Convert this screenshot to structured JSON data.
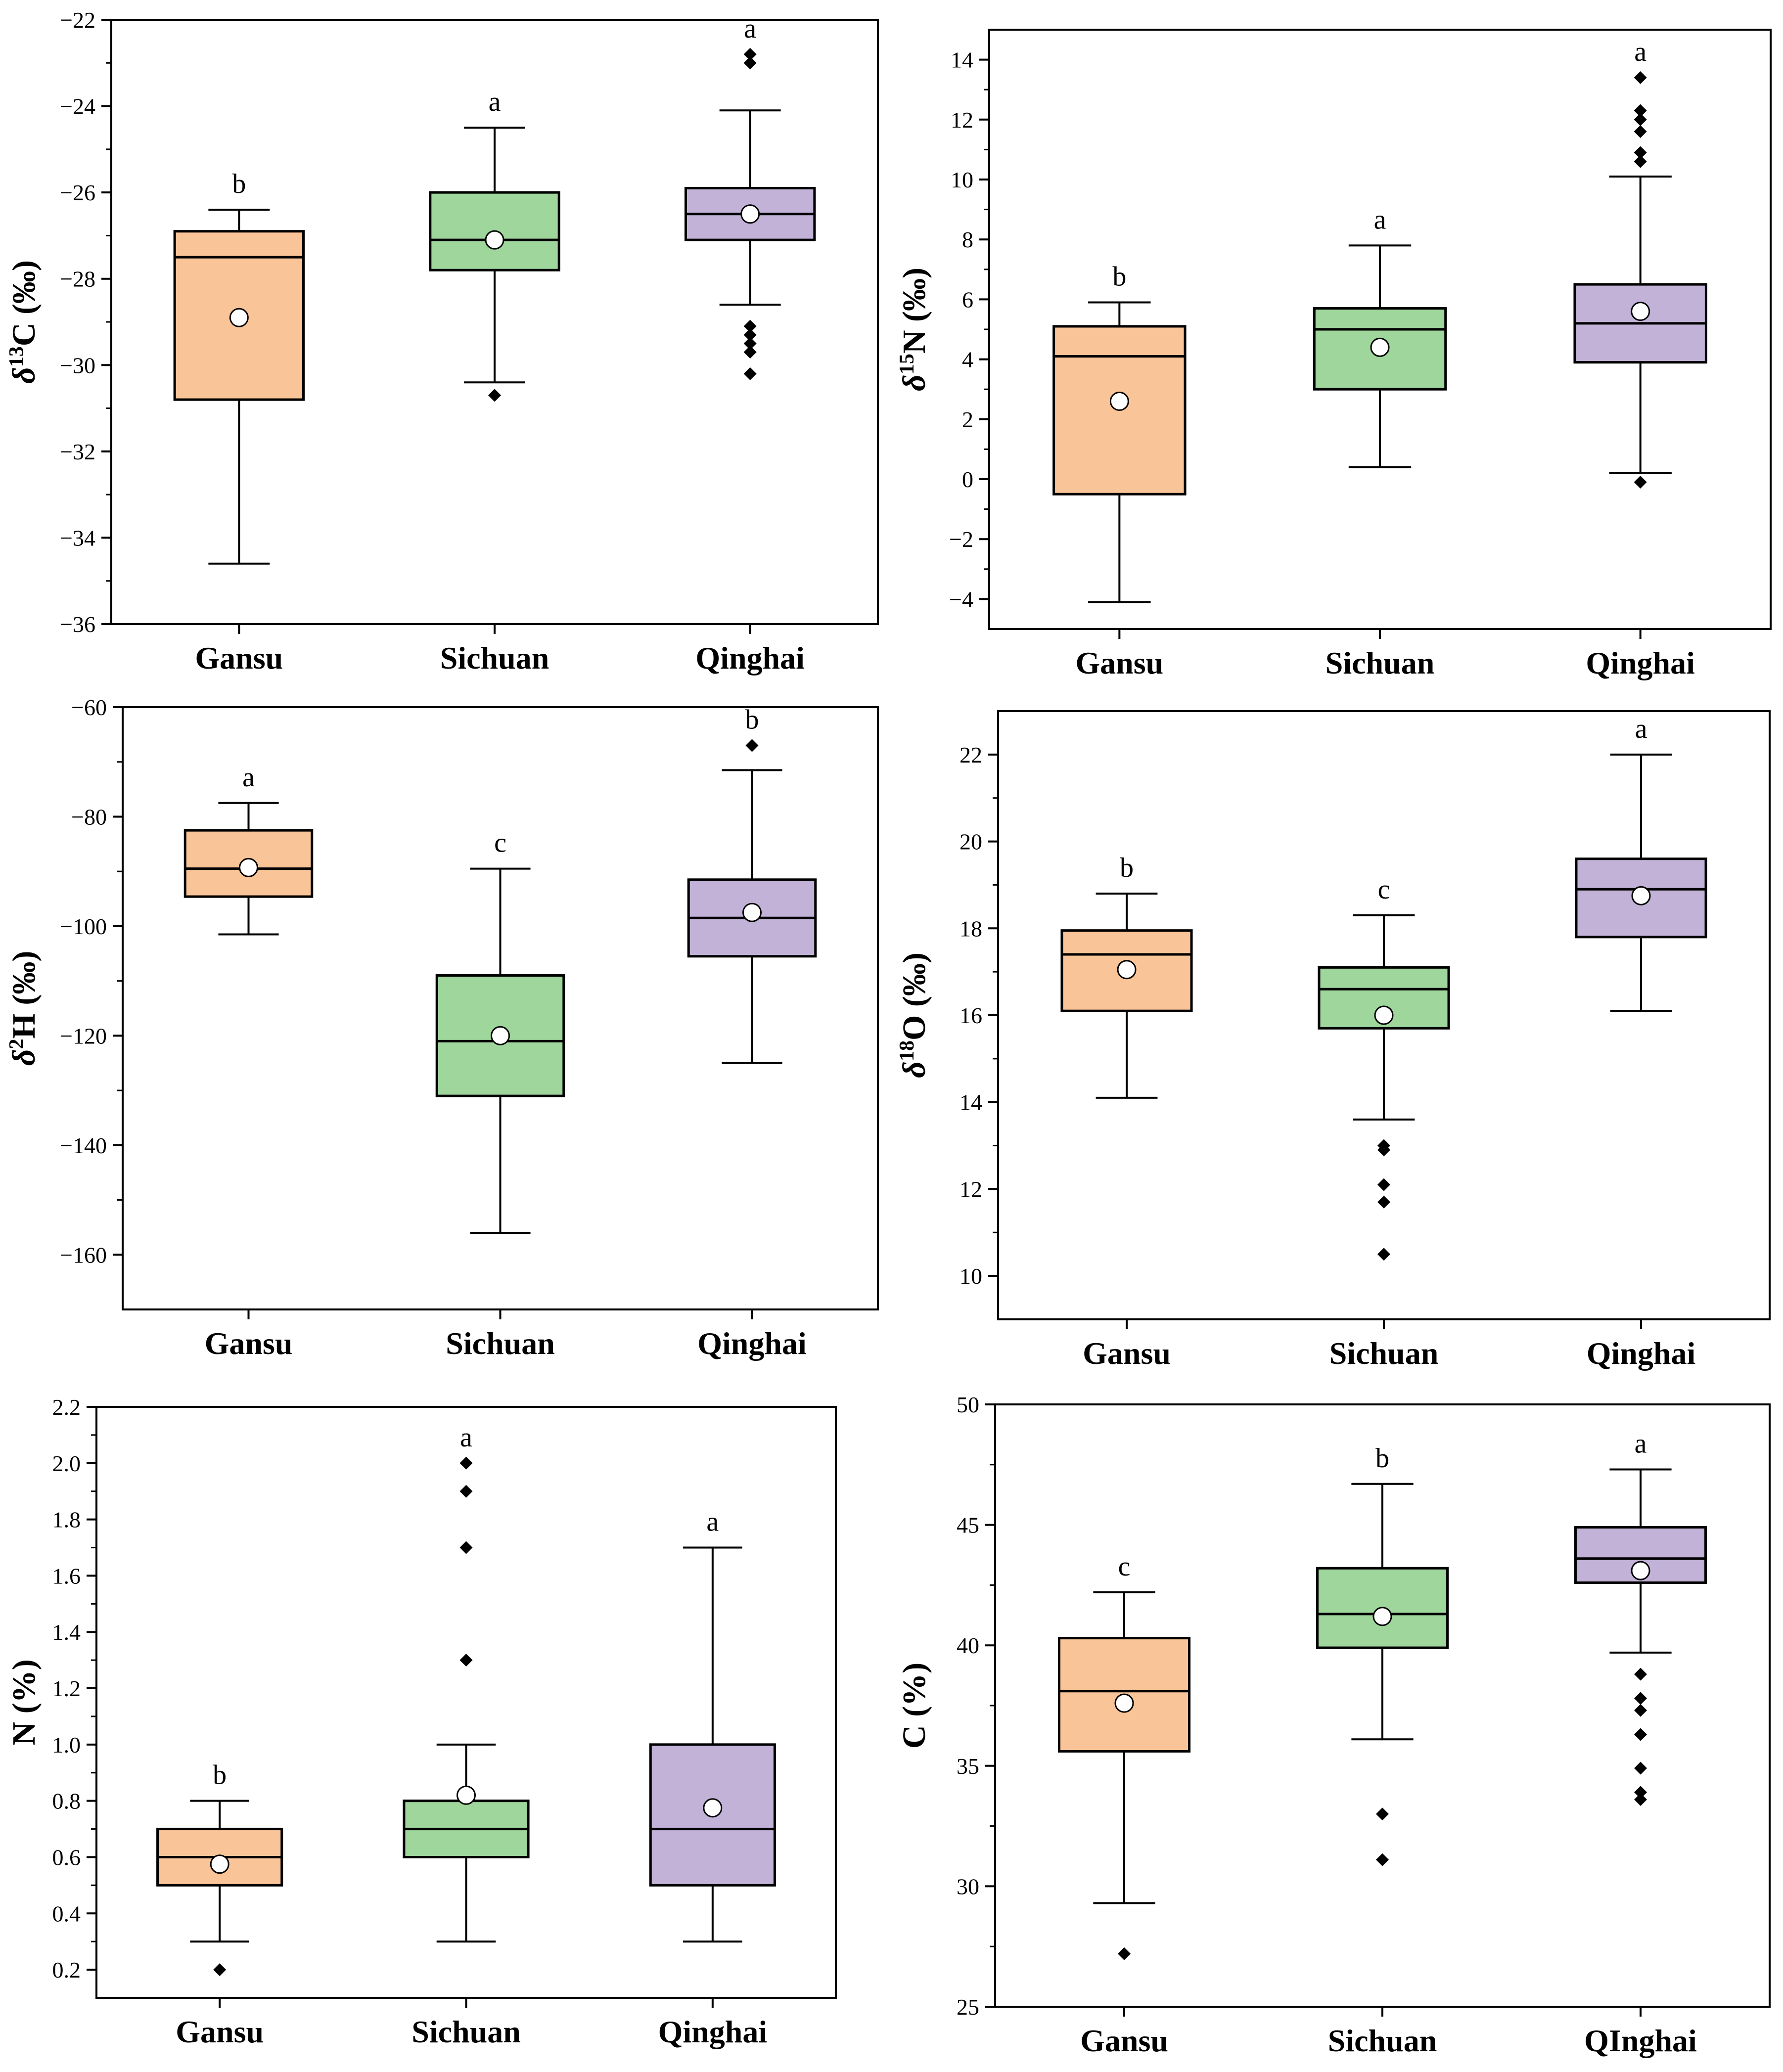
{
  "colors": {
    "Gansu": "#f9c497",
    "Sichuan": "#9ed69c",
    "Qinghai": "#c2b2d8",
    "line": "#000000",
    "mean_marker": "#ffffff"
  },
  "chart_data": [
    {
      "type": "box",
      "ylabel": "δ13C (‰)",
      "ylabel_parts": {
        "symbol": "δ",
        "sup": "13",
        "rest": "C (‰)"
      },
      "ylim": [
        -36,
        -22
      ],
      "yticks": [
        -36,
        -34,
        -32,
        -30,
        -28,
        -26,
        -24,
        -22
      ],
      "ytick_labels": [
        "−36",
        "−34",
        "−32",
        "−30",
        "−28",
        "−26",
        "−24",
        "−22"
      ],
      "categories": [
        "Gansu",
        "Sichuan",
        "Qinghai"
      ],
      "boxes": [
        {
          "group": "Gansu",
          "whisker_low": -34.6,
          "q1": -30.8,
          "median": -27.5,
          "q3": -26.9,
          "whisker_high": -26.4,
          "mean": -28.9,
          "outliers": [],
          "letter": "b"
        },
        {
          "group": "Sichuan",
          "whisker_low": -30.4,
          "q1": -27.8,
          "median": -27.1,
          "q3": -26.0,
          "whisker_high": -24.5,
          "mean": -27.1,
          "outliers": [
            -30.7
          ],
          "letter": "a"
        },
        {
          "group": "Qinghai",
          "whisker_low": -28.6,
          "q1": -27.1,
          "median": -26.5,
          "q3": -25.9,
          "whisker_high": -24.1,
          "mean": -26.5,
          "outliers": [
            -29.1,
            -29.3,
            -29.5,
            -29.7,
            -30.2,
            -22.8,
            -23.0
          ],
          "letter": "a"
        }
      ]
    },
    {
      "type": "box",
      "ylabel": "δ15N (‰)",
      "ylabel_parts": {
        "symbol": "δ",
        "sup": "15",
        "rest": "N (‰)"
      },
      "ylim": [
        -5,
        15
      ],
      "yticks": [
        -4,
        -2,
        0,
        2,
        4,
        6,
        8,
        10,
        12,
        14
      ],
      "ytick_labels": [
        "−4",
        "−2",
        "0",
        "2",
        "4",
        "6",
        "8",
        "10",
        "12",
        "14"
      ],
      "categories": [
        "Gansu",
        "Sichuan",
        "Qinghai"
      ],
      "boxes": [
        {
          "group": "Gansu",
          "whisker_low": -4.1,
          "q1": -0.5,
          "median": 4.1,
          "q3": 5.1,
          "whisker_high": 5.9,
          "mean": 2.6,
          "outliers": [],
          "letter": "b"
        },
        {
          "group": "Sichuan",
          "whisker_low": 0.4,
          "q1": 3.0,
          "median": 5.0,
          "q3": 5.7,
          "whisker_high": 7.8,
          "mean": 4.4,
          "outliers": [],
          "letter": "a"
        },
        {
          "group": "Qinghai",
          "whisker_low": 0.2,
          "q1": 3.9,
          "median": 5.2,
          "q3": 6.5,
          "whisker_high": 10.1,
          "mean": 5.6,
          "outliers": [
            -0.1,
            10.6,
            10.9,
            11.6,
            12.0,
            12.3,
            13.4
          ],
          "letter": "a"
        }
      ]
    },
    {
      "type": "box",
      "ylabel": "δ2H (‰)",
      "ylabel_parts": {
        "symbol": "δ",
        "sup": "2",
        "rest": "H (‰)"
      },
      "ylim": [
        -170,
        -60
      ],
      "yticks": [
        -160,
        -140,
        -120,
        -100,
        -80,
        -60
      ],
      "ytick_labels": [
        "−160",
        "−140",
        "−120",
        "−100",
        "−80",
        "−60"
      ],
      "categories": [
        "Gansu",
        "Sichuan",
        "Qinghai"
      ],
      "boxes": [
        {
          "group": "Gansu",
          "whisker_low": -101.5,
          "q1": -94.6,
          "median": -89.5,
          "q3": -82.5,
          "whisker_high": -77.5,
          "mean": -89.3,
          "outliers": [],
          "letter": "a"
        },
        {
          "group": "Sichuan",
          "whisker_low": -156.0,
          "q1": -131.0,
          "median": -121.0,
          "q3": -109.0,
          "whisker_high": -89.5,
          "mean": -120.0,
          "outliers": [],
          "letter": "c"
        },
        {
          "group": "Qinghai",
          "whisker_low": -125.0,
          "q1": -105.5,
          "median": -98.5,
          "q3": -91.5,
          "whisker_high": -71.5,
          "mean": -97.5,
          "outliers": [
            -67.0
          ],
          "letter": "b"
        }
      ]
    },
    {
      "type": "box",
      "ylabel": "δ18O (‰)",
      "ylabel_parts": {
        "symbol": "δ",
        "sup": "18",
        "rest": "O (‰)"
      },
      "ylim": [
        9,
        23
      ],
      "yticks": [
        10,
        12,
        14,
        16,
        18,
        20,
        22
      ],
      "ytick_labels": [
        "10",
        "12",
        "14",
        "16",
        "18",
        "20",
        "22"
      ],
      "categories": [
        "Gansu",
        "Sichuan",
        "Qinghai"
      ],
      "boxes": [
        {
          "group": "Gansu",
          "whisker_low": 14.1,
          "q1": 16.1,
          "median": 17.4,
          "q3": 17.95,
          "whisker_high": 18.8,
          "mean": 17.05,
          "outliers": [],
          "letter": "b"
        },
        {
          "group": "Sichuan",
          "whisker_low": 13.6,
          "q1": 15.7,
          "median": 16.6,
          "q3": 17.1,
          "whisker_high": 18.3,
          "mean": 16.0,
          "outliers": [
            10.5,
            11.7,
            12.1,
            12.9,
            13.0
          ],
          "letter": "c"
        },
        {
          "group": "Qinghai",
          "whisker_low": 16.1,
          "q1": 17.8,
          "median": 18.9,
          "q3": 19.6,
          "whisker_high": 22.0,
          "mean": 18.75,
          "outliers": [],
          "letter": "a"
        }
      ]
    },
    {
      "type": "box",
      "ylabel": "N (%)",
      "ylabel_parts": {
        "symbol": "",
        "sup": "",
        "rest": "N (%)"
      },
      "ylim": [
        0.1,
        2.2
      ],
      "yticks": [
        0.2,
        0.4,
        0.6,
        0.8,
        1.0,
        1.2,
        1.4,
        1.6,
        1.8,
        2.0,
        2.2
      ],
      "ytick_labels": [
        "0.2",
        "0.4",
        "0.6",
        "0.8",
        "1.0",
        "1.2",
        "1.4",
        "1.6",
        "1.8",
        "2.0",
        "2.2"
      ],
      "categories": [
        "Gansu",
        "Sichuan",
        "Qinghai"
      ],
      "boxes": [
        {
          "group": "Gansu",
          "whisker_low": 0.3,
          "q1": 0.5,
          "median": 0.6,
          "q3": 0.7,
          "whisker_high": 0.8,
          "mean": 0.575,
          "outliers": [
            0.2
          ],
          "letter": "b"
        },
        {
          "group": "Sichuan",
          "whisker_low": 0.3,
          "q1": 0.6,
          "median": 0.7,
          "q3": 0.8,
          "whisker_high": 1.0,
          "mean": 0.82,
          "outliers": [
            1.3,
            1.7,
            1.9,
            2.0
          ],
          "letter": "a"
        },
        {
          "group": "Qinghai",
          "whisker_low": 0.3,
          "q1": 0.5,
          "median": 0.7,
          "q3": 1.0,
          "whisker_high": 1.7,
          "mean": 0.775,
          "outliers": [],
          "letter": "a"
        }
      ]
    },
    {
      "type": "box",
      "ylabel": "C (%)",
      "ylabel_parts": {
        "symbol": "",
        "sup": "",
        "rest": "C (%)"
      },
      "ylim": [
        25,
        50
      ],
      "yticks": [
        25,
        30,
        35,
        40,
        45,
        50
      ],
      "ytick_labels": [
        "25",
        "30",
        "35",
        "40",
        "45",
        "50"
      ],
      "categories": [
        "Gansu",
        "Sichuan",
        "QInghai"
      ],
      "boxes": [
        {
          "group": "Gansu",
          "whisker_low": 29.3,
          "q1": 35.6,
          "median": 38.1,
          "q3": 40.3,
          "whisker_high": 42.2,
          "mean": 37.6,
          "outliers": [
            27.2
          ],
          "letter": "c"
        },
        {
          "group": "Sichuan",
          "whisker_low": 36.1,
          "q1": 39.9,
          "median": 41.3,
          "q3": 43.2,
          "whisker_high": 46.7,
          "mean": 41.2,
          "outliers": [
            31.1,
            33.0
          ],
          "letter": "b"
        },
        {
          "group": "QInghai",
          "whisker_low": 39.7,
          "q1": 42.6,
          "median": 43.6,
          "q3": 44.9,
          "whisker_high": 47.3,
          "mean": 43.1,
          "outliers": [
            33.6,
            33.9,
            34.9,
            36.3,
            37.3,
            37.8,
            38.8
          ],
          "letter": "a"
        }
      ]
    }
  ]
}
